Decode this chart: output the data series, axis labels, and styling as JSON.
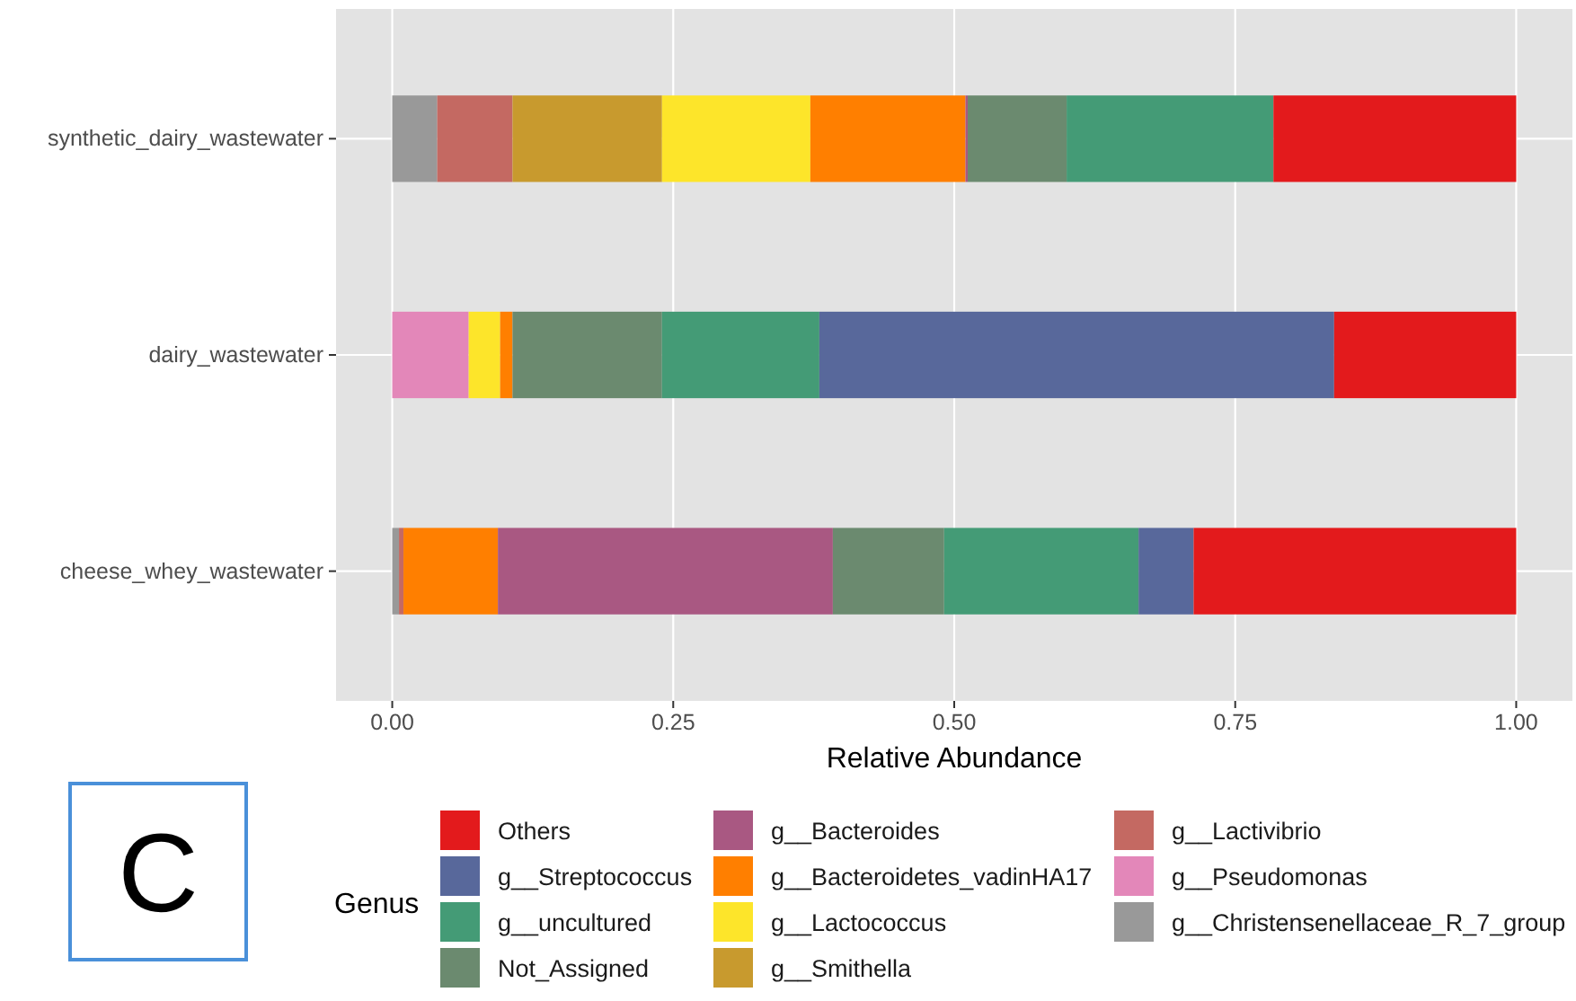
{
  "chart_data": {
    "type": "bar",
    "orientation": "horizontal",
    "stacked": true,
    "categories": [
      "synthetic_dairy_wastewater",
      "dairy_wastewater",
      "cheese_whey_wastewater"
    ],
    "series": [
      {
        "name": "g__Christensenellaceae_R_7_group",
        "color": "#999999",
        "values": [
          0.04,
          null,
          0.006
        ]
      },
      {
        "name": "g__Pseudomonas",
        "color": "#e387b9",
        "values": [
          null,
          0.068,
          null
        ]
      },
      {
        "name": "g__Lactivibrio",
        "color": "#c46962",
        "values": [
          0.067,
          null,
          0.004
        ]
      },
      {
        "name": "g__Smithella",
        "color": "#c89a2e",
        "values": [
          0.133,
          null,
          null
        ]
      },
      {
        "name": "g__Lactococcus",
        "color": "#fde52a",
        "values": [
          0.132,
          0.028,
          null
        ]
      },
      {
        "name": "g__Bacteroidetes_vadinHA17",
        "color": "#ff7f00",
        "values": [
          0.138,
          0.011,
          0.084
        ]
      },
      {
        "name": "g__Bacteroides",
        "color": "#a95882",
        "values": [
          0.002,
          null,
          0.298
        ]
      },
      {
        "name": "Not_Assigned",
        "color": "#6b8a6f",
        "values": [
          0.088,
          0.133,
          0.099
        ]
      },
      {
        "name": "g__uncultured",
        "color": "#449b76",
        "values": [
          0.184,
          0.14,
          0.173
        ]
      },
      {
        "name": "g__Streptococcus",
        "color": "#58689b",
        "values": [
          null,
          0.458,
          0.049
        ]
      },
      {
        "name": "Others",
        "color": "#e31a1c",
        "values": [
          0.216,
          0.162,
          0.287
        ]
      }
    ],
    "xlabel": "Relative Abundance",
    "xlim": [
      -0.05,
      1.05
    ],
    "xticks": [
      {
        "value": 0,
        "label": "0.00"
      },
      {
        "value": 0.25,
        "label": "0.25"
      },
      {
        "value": 0.5,
        "label": "0.50"
      },
      {
        "value": 0.75,
        "label": "0.75"
      },
      {
        "value": 1,
        "label": "1.00"
      }
    ],
    "grid": true,
    "legend": "bottom",
    "legend_title": "Genus",
    "annotations": [
      "C"
    ]
  }
}
